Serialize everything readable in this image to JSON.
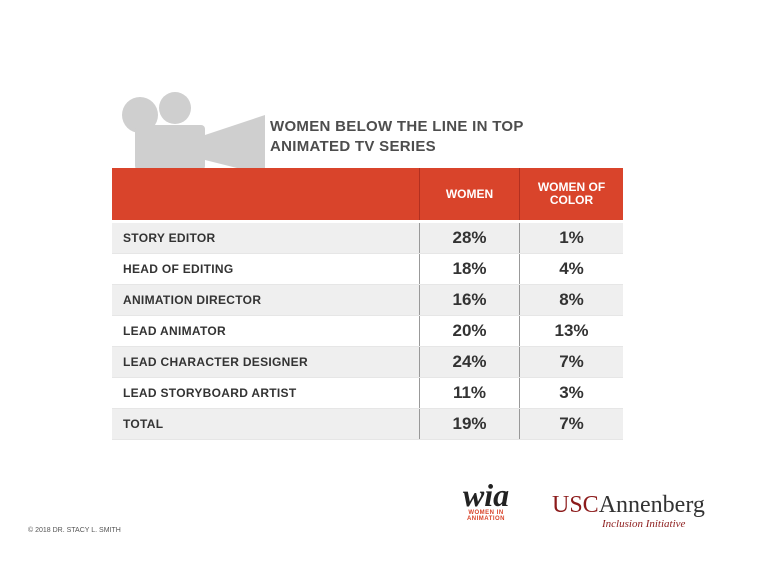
{
  "header": {
    "title": "WOMEN BELOW THE LINE IN TOP ANIMATED TV SERIES"
  },
  "table": {
    "columns": [
      "WOMEN",
      "WOMEN OF COLOR"
    ],
    "rows": [
      [
        "STORY EDITOR",
        "28%",
        "1%"
      ],
      [
        "HEAD OF EDITING",
        "18%",
        "4%"
      ],
      [
        "ANIMATION DIRECTOR",
        "16%",
        "8%"
      ],
      [
        "LEAD ANIMATOR",
        "20%",
        "13%"
      ],
      [
        "LEAD CHARACTER DESIGNER",
        "24%",
        "7%"
      ],
      [
        "LEAD STORYBOARD ARTIST",
        "11%",
        "3%"
      ],
      [
        "TOTAL",
        "19%",
        "7%"
      ]
    ]
  },
  "footer": {
    "copyright": "© 2018 DR. STACY L. SMITH",
    "logo1": {
      "mark": "wia",
      "text": "WOMEN IN ANIMATION"
    },
    "logo2": {
      "usc": "USC",
      "name": "Annenberg",
      "tagline": "Inclusion Initiative"
    }
  }
}
